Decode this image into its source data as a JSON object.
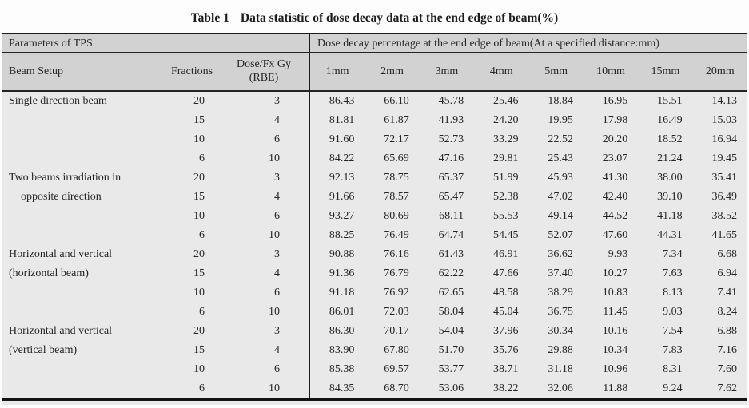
{
  "title": {
    "label": "Table 1",
    "text": "Data statistic of dose decay data at the end edge of beam(%)"
  },
  "table": {
    "left_group_header": "Parameters of TPS",
    "right_group_header": "Dose decay percentage at the end edge of beam(At a specified distance:mm)",
    "columns": [
      "Beam Setup",
      "Fractions",
      "Dose/Fx Gy\n(RBE)",
      "1mm",
      "2mm",
      "3mm",
      "4mm",
      "5mm",
      "10mm",
      "15mm",
      "20mm"
    ],
    "sections": [
      {
        "beam_setup": [
          "Single direction beam"
        ],
        "indent_second_line": false,
        "rows": [
          {
            "fractions": "20",
            "dose_fx": "3",
            "values": [
              "86.43",
              "66.10",
              "45.78",
              "25.46",
              "18.84",
              "16.95",
              "15.51",
              "14.13"
            ]
          },
          {
            "fractions": "15",
            "dose_fx": "4",
            "values": [
              "81.81",
              "61.87",
              "41.93",
              "24.20",
              "19.95",
              "17.98",
              "16.49",
              "15.03"
            ]
          },
          {
            "fractions": "10",
            "dose_fx": "6",
            "values": [
              "91.60",
              "72.17",
              "52.73",
              "33.29",
              "22.52",
              "20.20",
              "18.52",
              "16.94"
            ]
          },
          {
            "fractions": "6",
            "dose_fx": "10",
            "values": [
              "84.22",
              "65.69",
              "47.16",
              "29.81",
              "25.43",
              "23.07",
              "21.24",
              "19.45"
            ]
          }
        ]
      },
      {
        "beam_setup": [
          "Two beams irradiation in",
          "opposite direction"
        ],
        "indent_second_line": true,
        "rows": [
          {
            "fractions": "20",
            "dose_fx": "3",
            "values": [
              "92.13",
              "78.75",
              "65.37",
              "51.99",
              "45.93",
              "41.30",
              "38.00",
              "35.41"
            ]
          },
          {
            "fractions": "15",
            "dose_fx": "4",
            "values": [
              "91.66",
              "78.57",
              "65.47",
              "52.38",
              "47.02",
              "42.40",
              "39.10",
              "36.49"
            ]
          },
          {
            "fractions": "10",
            "dose_fx": "6",
            "values": [
              "93.27",
              "80.69",
              "68.11",
              "55.53",
              "49.14",
              "44.52",
              "41.18",
              "38.52"
            ]
          },
          {
            "fractions": "6",
            "dose_fx": "10",
            "values": [
              "88.25",
              "76.49",
              "64.74",
              "54.45",
              "52.07",
              "47.60",
              "44.31",
              "41.65"
            ]
          }
        ]
      },
      {
        "beam_setup": [
          "Horizontal and vertical",
          "(horizontal beam)"
        ],
        "indent_second_line": false,
        "rows": [
          {
            "fractions": "20",
            "dose_fx": "3",
            "values": [
              "90.88",
              "76.16",
              "61.43",
              "46.91",
              "36.62",
              "9.93",
              "7.34",
              "6.68"
            ]
          },
          {
            "fractions": "15",
            "dose_fx": "4",
            "values": [
              "91.36",
              "76.79",
              "62.22",
              "47.66",
              "37.40",
              "10.27",
              "7.63",
              "6.94"
            ]
          },
          {
            "fractions": "10",
            "dose_fx": "6",
            "values": [
              "91.18",
              "76.92",
              "62.65",
              "48.58",
              "38.29",
              "10.83",
              "8.13",
              "7.41"
            ]
          },
          {
            "fractions": "6",
            "dose_fx": "10",
            "values": [
              "86.01",
              "72.03",
              "58.04",
              "45.04",
              "36.75",
              "11.45",
              "9.03",
              "8.24"
            ]
          }
        ]
      },
      {
        "beam_setup": [
          "Horizontal and vertical",
          "(vertical beam)"
        ],
        "indent_second_line": false,
        "rows": [
          {
            "fractions": "20",
            "dose_fx": "3",
            "values": [
              "86.30",
              "70.17",
              "54.04",
              "37.96",
              "30.34",
              "10.16",
              "7.54",
              "6.88"
            ]
          },
          {
            "fractions": "15",
            "dose_fx": "4",
            "values": [
              "83.90",
              "67.80",
              "51.70",
              "35.76",
              "29.88",
              "10.34",
              "7.83",
              "7.16"
            ]
          },
          {
            "fractions": "10",
            "dose_fx": "6",
            "values": [
              "85.38",
              "69.57",
              "53.77",
              "38.71",
              "31.18",
              "10.96",
              "8.31",
              "7.60"
            ]
          },
          {
            "fractions": "6",
            "dose_fx": "10",
            "values": [
              "84.35",
              "68.70",
              "53.06",
              "38.22",
              "32.06",
              "11.88",
              "9.24",
              "7.62"
            ]
          }
        ]
      }
    ]
  },
  "colors": {
    "header_background": "#d2d2d2",
    "body_background": "#e9e9e9",
    "rule": "#1b1b1b",
    "text": "#262626"
  }
}
